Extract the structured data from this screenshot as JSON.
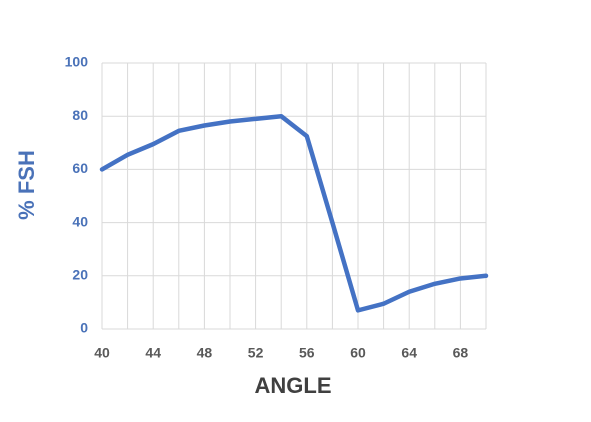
{
  "chart_data": {
    "type": "line",
    "x_label": "ANGLE",
    "y_label": "% FSH",
    "x": [
      40,
      42,
      44,
      46,
      48,
      50,
      52,
      54,
      56,
      58,
      60,
      62,
      64,
      66,
      68,
      70
    ],
    "series": [
      {
        "name": "% FSH",
        "color": "#4472c4",
        "values": [
          60,
          65.5,
          69.5,
          74.5,
          76.5,
          78,
          79,
          80,
          72.5,
          40,
          7,
          9.5,
          14,
          17,
          19,
          20
        ]
      }
    ],
    "xlim": [
      40,
      70
    ],
    "xticks": [
      40,
      44,
      48,
      52,
      56,
      60,
      64,
      68
    ],
    "ylim": [
      0,
      100
    ],
    "yticks": [
      0,
      20,
      40,
      60,
      80,
      100
    ],
    "grid": true
  }
}
